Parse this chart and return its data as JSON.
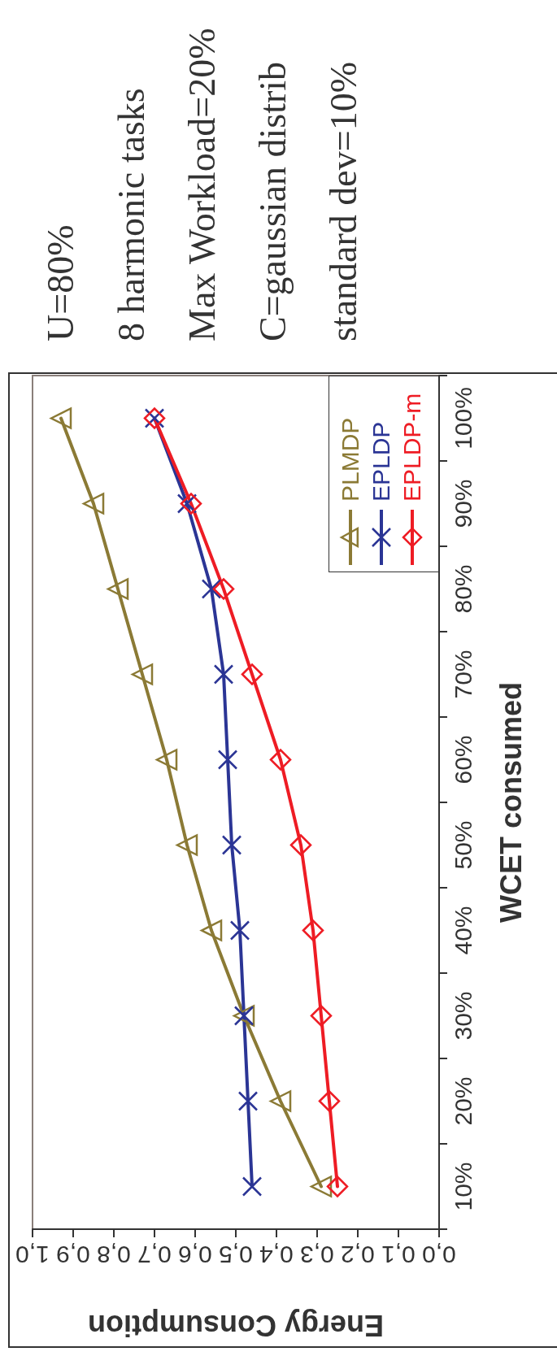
{
  "chart_data": {
    "type": "line",
    "orientation": "horizontal",
    "xlabel": "Energy Consumption",
    "ylabel": "WCET consumed",
    "categories": [
      "100%",
      "90%",
      "80%",
      "70%",
      "60%",
      "50%",
      "40%",
      "30%",
      "20%",
      "10%"
    ],
    "series": [
      {
        "name": "PLMDP",
        "color": "#8b7a35",
        "marker": "triangle",
        "values": [
          0.93,
          0.85,
          0.79,
          0.73,
          0.67,
          0.62,
          0.56,
          0.48,
          0.39,
          0.29
        ]
      },
      {
        "name": "EPLDP",
        "color": "#2b3595",
        "marker": "cross",
        "values": [
          0.7,
          0.62,
          0.56,
          0.53,
          0.52,
          0.51,
          0.49,
          0.48,
          0.47,
          0.46
        ]
      },
      {
        "name": "EPLDP-m",
        "color": "#ee1c24",
        "marker": "diamond",
        "values": [
          0.7,
          0.61,
          0.53,
          0.46,
          0.39,
          0.34,
          0.31,
          0.29,
          0.27,
          0.25
        ]
      }
    ],
    "xlim": [
      1,
      0
    ],
    "xticks": [
      {
        "value": 1,
        "label": "1,0"
      },
      {
        "value": 0.9,
        "label": "0,9"
      },
      {
        "value": 0.8,
        "label": "0,8"
      },
      {
        "value": 0.7,
        "label": "0,7"
      },
      {
        "value": 0.6,
        "label": "0,6"
      },
      {
        "value": 0.5,
        "label": "0,5"
      },
      {
        "value": 0.4,
        "label": "0,4"
      },
      {
        "value": 0.3,
        "label": "0,3"
      },
      {
        "value": 0.2,
        "label": "0,2"
      },
      {
        "value": 0.1,
        "label": "0,1"
      },
      {
        "value": 0,
        "label": "0,0"
      }
    ],
    "annotations": [
      "U=80%",
      "8 harmonic tasks",
      "Max Workload=20%",
      "C=gaussian distrib",
      "standard dev=10%"
    ],
    "legend": "top right",
    "grid": false,
    "line_style": "solid"
  }
}
